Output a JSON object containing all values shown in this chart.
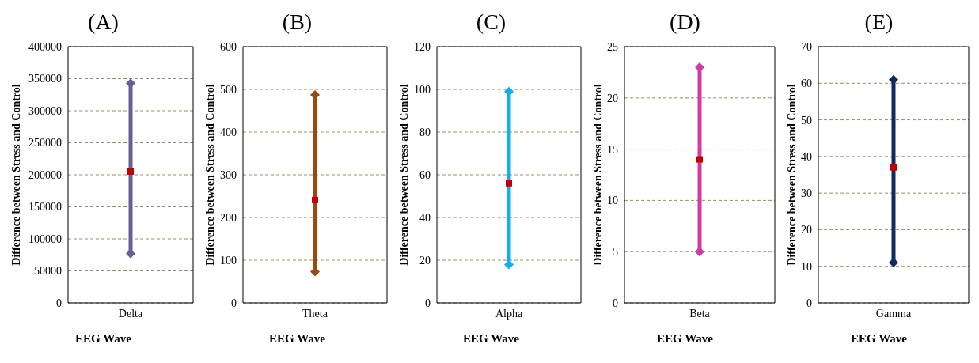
{
  "chart_data": [
    {
      "type": "line",
      "title": "(A)",
      "xlabel": "EEG Wave",
      "ylabel": "Difference between Stress and Control",
      "categories": [
        "Delta"
      ],
      "ylim": [
        0,
        400000
      ],
      "yticks": [
        0,
        50000,
        100000,
        150000,
        200000,
        250000,
        300000,
        350000,
        400000
      ],
      "grid": "y",
      "series": [
        {
          "color": "#6b5e96",
          "x": [
            "Delta",
            "Delta"
          ],
          "values": [
            77000,
            343000
          ],
          "marker": "diamond"
        },
        {
          "type": "scatter",
          "color": "#c00000",
          "x": [
            "Delta"
          ],
          "values": [
            205000
          ],
          "marker": "square"
        }
      ]
    },
    {
      "type": "line",
      "title": "(B)",
      "xlabel": "EEG Wave",
      "ylabel": "Difference between Stress and Control",
      "categories": [
        "Theta"
      ],
      "ylim": [
        0,
        600
      ],
      "yticks": [
        0,
        100,
        200,
        300,
        400,
        500,
        600
      ],
      "grid": "y",
      "series": [
        {
          "color": "#984b10",
          "x": [
            "Theta",
            "Theta"
          ],
          "values": [
            73,
            487
          ],
          "marker": "diamond"
        },
        {
          "type": "scatter",
          "color": "#c00000",
          "x": [
            "Theta"
          ],
          "values": [
            241
          ],
          "marker": "square"
        }
      ]
    },
    {
      "type": "line",
      "title": "(C)",
      "xlabel": "EEG Wave",
      "ylabel": "Difference between Stress and Control",
      "categories": [
        "Alpha"
      ],
      "ylim": [
        0,
        120
      ],
      "yticks": [
        0,
        20,
        40,
        60,
        80,
        100,
        120
      ],
      "grid": "y",
      "series": [
        {
          "color": "#0fb0ee",
          "x": [
            "Alpha",
            "Alpha"
          ],
          "values": [
            18,
            99
          ],
          "marker": "diamond"
        },
        {
          "type": "scatter",
          "color": "#c00000",
          "x": [
            "Alpha"
          ],
          "values": [
            56
          ],
          "marker": "square"
        }
      ]
    },
    {
      "type": "line",
      "title": "(D)",
      "xlabel": "EEG Wave",
      "ylabel": "Difference between Stress and Control",
      "categories": [
        "Beta"
      ],
      "ylim": [
        0,
        25
      ],
      "yticks": [
        0,
        5,
        10,
        15,
        20,
        25
      ],
      "grid": "y",
      "series": [
        {
          "color": "#d23ba6",
          "x": [
            "Beta",
            "Beta"
          ],
          "values": [
            5,
            23
          ],
          "marker": "diamond"
        },
        {
          "type": "scatter",
          "color": "#c00000",
          "x": [
            "Beta"
          ],
          "values": [
            14
          ],
          "marker": "square"
        }
      ]
    },
    {
      "type": "line",
      "title": "(E)",
      "xlabel": "EEG Wave",
      "ylabel": "Difference between Stress and Control",
      "categories": [
        "Gamma"
      ],
      "ylim": [
        0,
        70
      ],
      "yticks": [
        0,
        10,
        20,
        30,
        40,
        50,
        60,
        70
      ],
      "grid": "y",
      "series": [
        {
          "color": "#0f2a5c",
          "x": [
            "Gamma",
            "Gamma"
          ],
          "values": [
            11,
            61
          ],
          "marker": "diamond"
        },
        {
          "type": "scatter",
          "color": "#c00000",
          "x": [
            "Gamma"
          ],
          "values": [
            37
          ],
          "marker": "square"
        }
      ]
    }
  ]
}
